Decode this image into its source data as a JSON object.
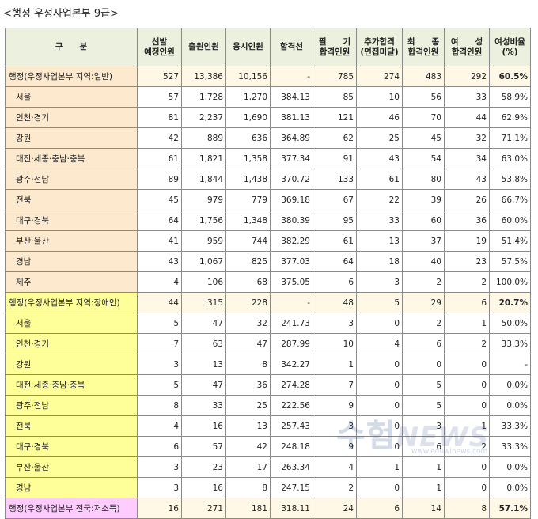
{
  "title": "<행정 우정사업본부 9급>",
  "headers": [
    [
      "구　　분"
    ],
    [
      "선발",
      "예정인원"
    ],
    [
      "출원인원"
    ],
    [
      "응시인원"
    ],
    [
      "합격선"
    ],
    [
      "필　　기",
      "합격인원"
    ],
    [
      "추가합격",
      "(면접미달)"
    ],
    [
      "최　　종",
      "합격인원"
    ],
    [
      "여　　성",
      "합격인원"
    ],
    [
      "여성비율",
      "(%)"
    ]
  ],
  "rows": [
    {
      "type": "group",
      "cat": "gen",
      "cells": [
        "행정(우정사업본부 지역:일반)",
        "527",
        "13,386",
        "10,156",
        "-",
        "785",
        "274",
        "483",
        "292",
        "60.5%"
      ]
    },
    {
      "type": "sub",
      "cat": "gen",
      "cells": [
        "서울",
        "57",
        "1,728",
        "1,270",
        "384.13",
        "85",
        "10",
        "56",
        "33",
        "58.9%"
      ]
    },
    {
      "type": "sub",
      "cat": "gen",
      "cells": [
        "인천·경기",
        "81",
        "2,237",
        "1,690",
        "381.13",
        "121",
        "46",
        "70",
        "44",
        "62.9%"
      ]
    },
    {
      "type": "sub",
      "cat": "gen",
      "cells": [
        "강원",
        "42",
        "889",
        "636",
        "364.89",
        "62",
        "25",
        "45",
        "32",
        "71.1%"
      ]
    },
    {
      "type": "sub",
      "cat": "gen",
      "cells": [
        "대전·세종·충남·충북",
        "61",
        "1,821",
        "1,358",
        "377.34",
        "91",
        "43",
        "54",
        "34",
        "63.0%"
      ]
    },
    {
      "type": "sub",
      "cat": "gen",
      "cells": [
        "광주·전남",
        "89",
        "1,844",
        "1,438",
        "370.72",
        "133",
        "61",
        "80",
        "43",
        "53.8%"
      ]
    },
    {
      "type": "sub",
      "cat": "gen",
      "cells": [
        "전북",
        "45",
        "979",
        "779",
        "369.18",
        "67",
        "22",
        "39",
        "26",
        "66.7%"
      ]
    },
    {
      "type": "sub",
      "cat": "gen",
      "cells": [
        "대구·경북",
        "64",
        "1,756",
        "1,348",
        "380.39",
        "95",
        "33",
        "60",
        "36",
        "60.0%"
      ]
    },
    {
      "type": "sub",
      "cat": "gen",
      "cells": [
        "부산·울산",
        "41",
        "959",
        "744",
        "382.29",
        "61",
        "13",
        "37",
        "19",
        "51.4%"
      ]
    },
    {
      "type": "sub",
      "cat": "gen",
      "cells": [
        "경남",
        "43",
        "1,067",
        "825",
        "377.03",
        "64",
        "18",
        "40",
        "23",
        "57.5%"
      ]
    },
    {
      "type": "sub",
      "cat": "gen",
      "cells": [
        "제주",
        "4",
        "106",
        "68",
        "375.05",
        "6",
        "3",
        "2",
        "2",
        "100.0%"
      ]
    },
    {
      "type": "group",
      "cat": "dis",
      "cells": [
        "행정(우정사업본부 지역:장애인)",
        "44",
        "315",
        "228",
        "-",
        "48",
        "5",
        "29",
        "6",
        "20.7%"
      ]
    },
    {
      "type": "sub",
      "cat": "dis",
      "cells": [
        "서울",
        "5",
        "47",
        "32",
        "241.73",
        "3",
        "0",
        "2",
        "1",
        "50.0%"
      ]
    },
    {
      "type": "sub",
      "cat": "dis",
      "cells": [
        "인천·경기",
        "7",
        "63",
        "47",
        "287.99",
        "10",
        "4",
        "6",
        "2",
        "33.3%"
      ]
    },
    {
      "type": "sub",
      "cat": "dis",
      "cells": [
        "강원",
        "3",
        "13",
        "8",
        "342.27",
        "1",
        "0",
        "0",
        "0",
        "-"
      ]
    },
    {
      "type": "sub",
      "cat": "dis",
      "cells": [
        "대전·세종·충남·충북",
        "5",
        "47",
        "36",
        "274.28",
        "7",
        "0",
        "5",
        "0",
        "0.0%"
      ]
    },
    {
      "type": "sub",
      "cat": "dis",
      "cells": [
        "광주·전남",
        "8",
        "33",
        "25",
        "222.56",
        "9",
        "0",
        "5",
        "0",
        "0.0%"
      ]
    },
    {
      "type": "sub",
      "cat": "dis",
      "cells": [
        "전북",
        "4",
        "16",
        "13",
        "257.43",
        "3",
        "0",
        "3",
        "1",
        "33.3%"
      ]
    },
    {
      "type": "sub",
      "cat": "dis",
      "cells": [
        "대구·경북",
        "6",
        "57",
        "42",
        "248.18",
        "9",
        "0",
        "6",
        "2",
        "33.3%"
      ]
    },
    {
      "type": "sub",
      "cat": "dis",
      "cells": [
        "부산·울산",
        "3",
        "23",
        "17",
        "263.34",
        "4",
        "1",
        "1",
        "0",
        "0.0%"
      ]
    },
    {
      "type": "sub",
      "cat": "dis",
      "cells": [
        "경남",
        "3",
        "16",
        "8",
        "247.15",
        "2",
        "0",
        "1",
        "0",
        "0.0%"
      ]
    },
    {
      "type": "group",
      "cat": "low",
      "cells": [
        "행정(우정사업본부 전국:저소득)",
        "16",
        "271",
        "181",
        "318.11",
        "24",
        "6",
        "14",
        "8",
        "57.1%"
      ]
    }
  ],
  "watermark": {
    "main": "수험",
    "tail": "NEWS",
    "url": "www.eduwinews.com"
  },
  "colors": {
    "header": "#ebf1de",
    "general": "#fde9cd",
    "disabled": "#ffff99",
    "lowincome": "#ffccff",
    "border": "#8a8a8a"
  }
}
